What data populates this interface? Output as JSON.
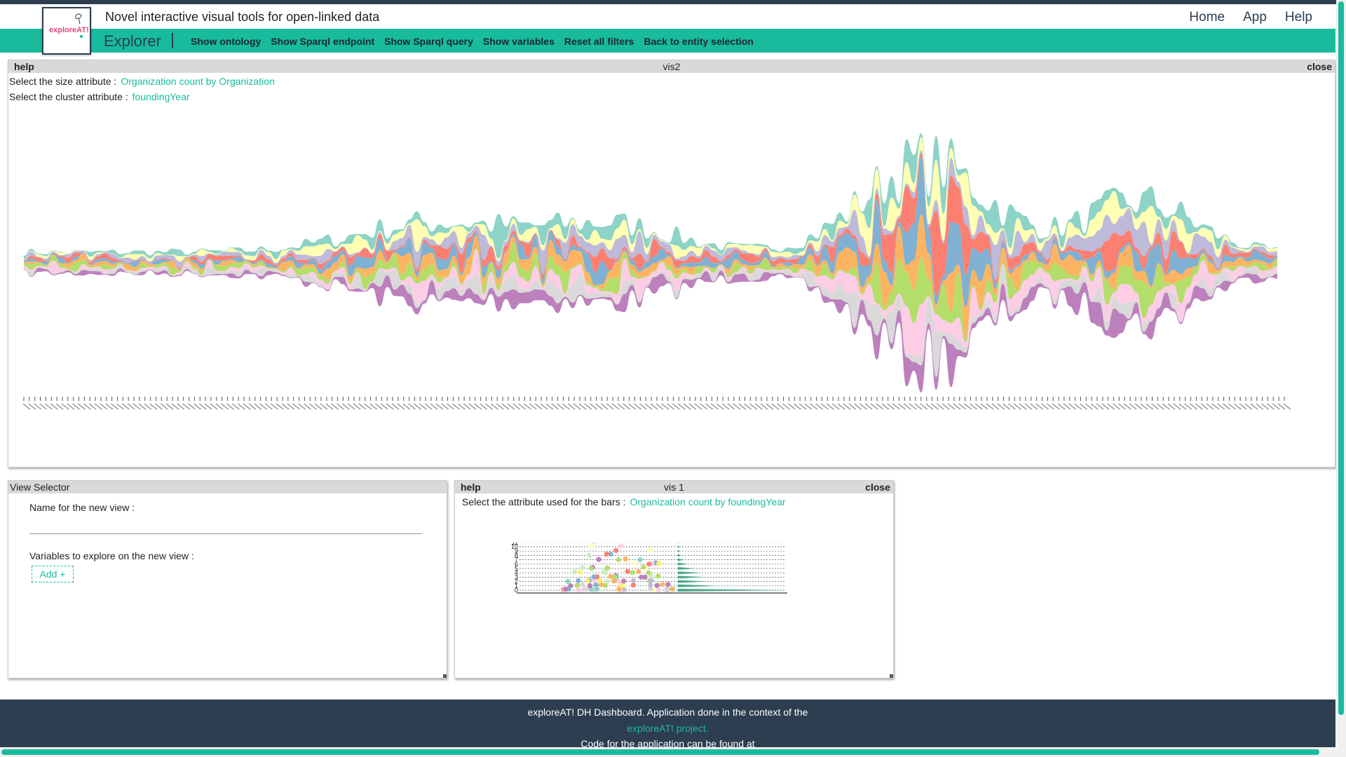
{
  "header": {
    "logo_text": "exploreAT!",
    "title": "Novel interactive visual tools for open-linked data",
    "nav": [
      "Home",
      "App",
      "Help"
    ]
  },
  "toolbar": {
    "brand": "Explorer",
    "links": [
      "Show ontology",
      "Show Sparql endpoint",
      "Show Sparql query",
      "Show variables",
      "Reset all filters",
      "Back to entity selection"
    ]
  },
  "vis2": {
    "help": "help",
    "title": "vis2",
    "close": "close",
    "size_label": "Select the size attribute :",
    "size_value": "Organization count by Organization",
    "cluster_label": "Select the cluster attribute :",
    "cluster_value": "foundingYear"
  },
  "view_selector": {
    "title": "View Selector",
    "name_label": "Name for the new view :",
    "name_value": "",
    "vars_label": "Variables to explore on the new view :",
    "add_label": "Add +"
  },
  "vis1": {
    "help": "help",
    "title": "vis 1",
    "close": "close",
    "bars_label": "Select the attribute used for the bars :",
    "bars_value": "Organization count by foundingYear",
    "y_ticks": [
      "0",
      "1",
      "2",
      "3",
      "4",
      "5",
      "6",
      "7",
      "8",
      "9",
      "10",
      "11"
    ]
  },
  "footer": {
    "line1": "exploreAT! DH Dashboard. Application done in the context of the",
    "line2": "exploreAT! project.",
    "line3": "Code for the application can be found at"
  },
  "colors": {
    "accent": "#18bc9c",
    "dark": "#2c3e50",
    "palette": [
      "#8dd3c7",
      "#ffffb3",
      "#bebada",
      "#fb8072",
      "#80b1d3",
      "#fdb462",
      "#b3de69",
      "#fccde5",
      "#d9d9d9",
      "#bc80bd",
      "#ccebc5",
      "#ffed6f"
    ]
  }
}
